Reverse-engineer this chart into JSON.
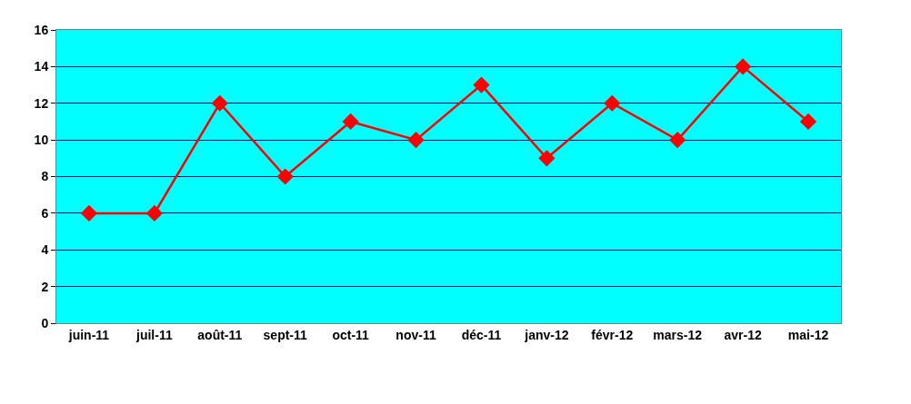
{
  "chart_data": {
    "type": "line",
    "categories": [
      "juin-11",
      "juil-11",
      "août-11",
      "sept-11",
      "oct-11",
      "nov-11",
      "déc-11",
      "janv-12",
      "févr-12",
      "mars-12",
      "avr-12",
      "mai-12"
    ],
    "series": [
      {
        "color": "#ff0000",
        "values": [
          6,
          6,
          12,
          8,
          11,
          10,
          13,
          9,
          12,
          10,
          14,
          11
        ]
      }
    ],
    "ylim": [
      0,
      16
    ],
    "yticks": [
      0,
      2,
      4,
      6,
      8,
      10,
      12,
      14,
      16
    ],
    "grid": "y",
    "legend": false,
    "marker": "diamond",
    "line_style": "solid"
  }
}
